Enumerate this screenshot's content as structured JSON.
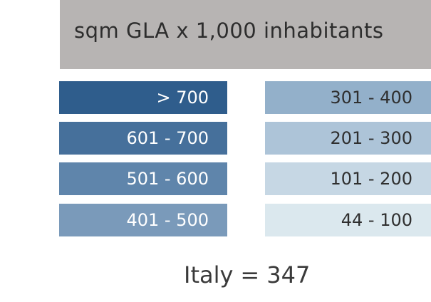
{
  "legend": {
    "title": "sqm GLA x 1,000 inhabitants",
    "classes": [
      {
        "label": "> 700",
        "color": "#2f5d8c"
      },
      {
        "label": "601 - 700",
        "color": "#46709b"
      },
      {
        "label": "501 - 600",
        "color": "#5f85ab"
      },
      {
        "label": "401 - 500",
        "color": "#7a9aba"
      },
      {
        "label": "301 - 400",
        "color": "#93b0ca"
      },
      {
        "label": "201 - 300",
        "color": "#adc4d8"
      },
      {
        "label": "101 - 200",
        "color": "#c6d7e4"
      },
      {
        "label": "44 - 100",
        "color": "#dbe8ee"
      }
    ]
  },
  "summary": {
    "country": "Italy",
    "equals": "=",
    "value": "347"
  },
  "colors": {
    "header_bg": "#b7b4b3",
    "page_bg": "#ffffff"
  }
}
